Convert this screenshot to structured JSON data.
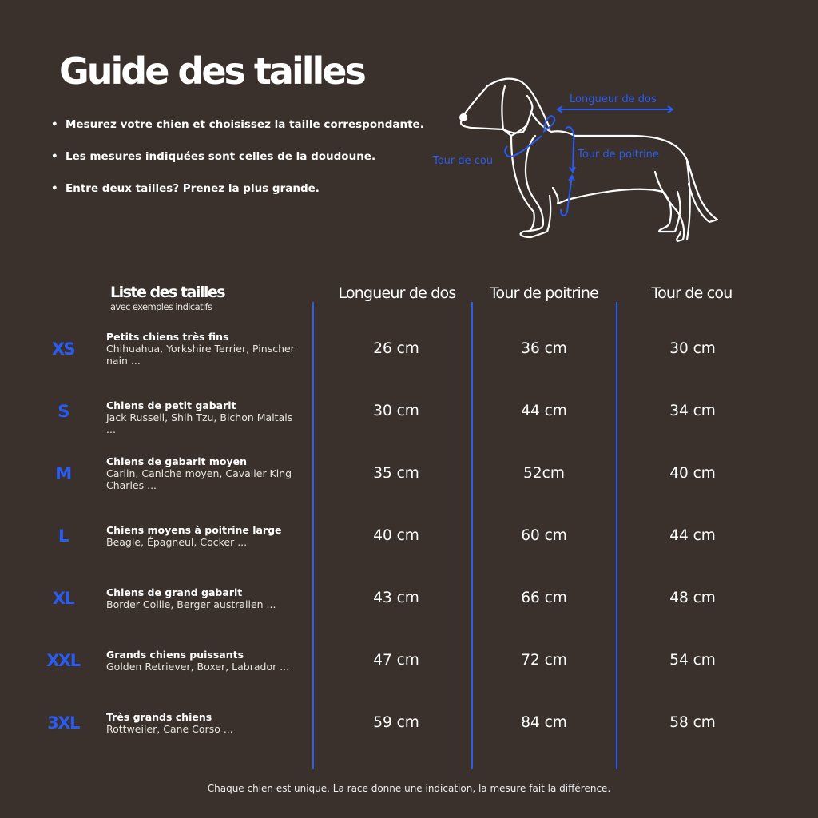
{
  "title": "Guide des tailles",
  "bullets": [
    "Mesurez votre chien et choisissez la taille correspondante.",
    "Les mesures indiquées sont celles de la doudoune.",
    "Entre deux tailles? Prenez la plus grande."
  ],
  "diagram": {
    "back_label": "Longueur de dos",
    "chest_label": "Tour de poitrine",
    "neck_label": "Tour de cou"
  },
  "colors": {
    "background": "#3a312c",
    "accent": "#2a5cf2",
    "text": "#ffffff"
  },
  "table": {
    "list_header": "Liste des tailles",
    "list_subheader": "avec exemples indicatifs",
    "columns": [
      "Longueur de dos",
      "Tour de poitrine",
      "Tour de cou"
    ],
    "rows": [
      {
        "size": "XS",
        "type": "Petits chiens très fins",
        "examples": "Chihuahua, Yorkshire Terrier, Pinscher nain ...",
        "values": [
          "26 cm",
          "36 cm",
          "30 cm"
        ]
      },
      {
        "size": "S",
        "type": "Chiens de petit gabarit",
        "examples": "Jack Russell, Shih Tzu, Bichon Maltais ...",
        "values": [
          "30 cm",
          "44 cm",
          "34 cm"
        ]
      },
      {
        "size": "M",
        "type": "Chiens de gabarit moyen",
        "examples": "Carlin, Caniche moyen, Cavalier King Charles ...",
        "values": [
          "35 cm",
          "52cm",
          "40 cm"
        ]
      },
      {
        "size": "L",
        "type": "Chiens moyens à poitrine large",
        "examples": "Beagle, Épagneul, Cocker ...",
        "values": [
          "40 cm",
          "60 cm",
          "44 cm"
        ]
      },
      {
        "size": "XL",
        "type": "Chiens de grand gabarit",
        "examples": "Border Collie, Berger australien ...",
        "values": [
          "43 cm",
          "66 cm",
          "48 cm"
        ]
      },
      {
        "size": "XXL",
        "type": "Grands chiens puissants",
        "examples": "Golden Retriever, Boxer, Labrador ...",
        "values": [
          "47 cm",
          "72 cm",
          "54 cm"
        ]
      },
      {
        "size": "3XL",
        "type": "Très grands chiens",
        "examples": "Rottweiler, Cane Corso ...",
        "values": [
          "59 cm",
          "84 cm",
          "58 cm"
        ]
      }
    ]
  },
  "footer": "Chaque chien est unique. La race donne une indication, la mesure fait la différence."
}
